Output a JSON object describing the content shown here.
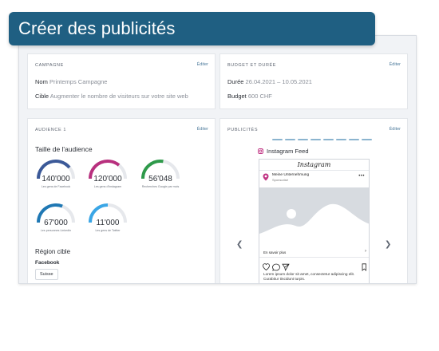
{
  "banner": {
    "title": "Créer des publicités"
  },
  "campagne": {
    "label": "Campagne",
    "edit": "Éditer",
    "nom_key": "Nom",
    "nom_value": "Printemps Campagne",
    "cible_key": "Cible",
    "cible_value": "Augmenter le nombre de visiteurs sur votre site web"
  },
  "budget": {
    "label": "Budget et durée",
    "edit": "Éditer",
    "duree_key": "Durée",
    "duree_value": "26.04.2021 – 10.05.2021",
    "budget_key": "Budget",
    "budget_value": "600 CHF"
  },
  "audience": {
    "label": "Audience 1",
    "edit": "Éditer",
    "title": "Taille de l'audience",
    "gauges": [
      {
        "value": "140'000",
        "caption": "Les gens de Facebook",
        "color": "#3b5998",
        "fill": 0.78
      },
      {
        "value": "120'000",
        "caption": "Les gens d'Instagram",
        "color": "#b8307e",
        "fill": 0.72
      },
      {
        "value": "56'048",
        "caption": "Recherches Google par mois",
        "color": "#2e9a4a",
        "fill": 0.55
      },
      {
        "value": "67'000",
        "caption": "Les personnes LinkedIn",
        "color": "#1f78b4",
        "fill": 0.62
      },
      {
        "value": "11'000",
        "caption": "Les gens de Twitter",
        "color": "#3aa6e6",
        "fill": 0.5
      }
    ],
    "region_title": "Région cible",
    "platform": "Facebook",
    "region_chip": "Suisse"
  },
  "publicites": {
    "label": "Publicités",
    "edit": "Éditer",
    "feed_title": "Instagram Feed",
    "prev_icon": "chevron-left-icon",
    "next_icon": "chevron-right-icon",
    "preview": {
      "app_name": "Instagram",
      "account": "Meine Unternehmung",
      "sponsored": "Sponsorisé",
      "cta": "En savoir plus",
      "caption": "Lorem ipsum dolor sit amet, consectetur adipiscing elit. Curabitur tincidunt turpis."
    }
  },
  "colors": {
    "banner": "#1f5f82",
    "link": "#4c7a9b",
    "panel_bg": "#f1f3f6"
  }
}
